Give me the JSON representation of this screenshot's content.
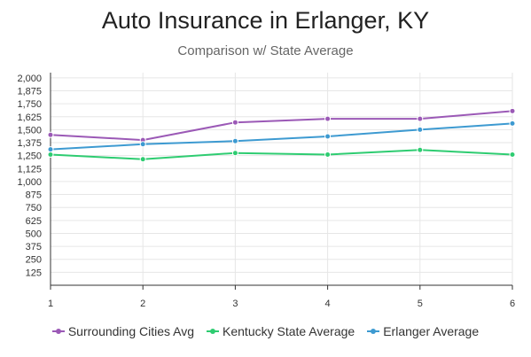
{
  "chart_data": {
    "type": "line",
    "title": "Auto Insurance in Erlanger, KY",
    "subtitle": "Comparison w/ State Average",
    "x": [
      1,
      2,
      3,
      4,
      5,
      6
    ],
    "y_ticks": [
      125,
      250,
      375,
      500,
      625,
      750,
      875,
      1000,
      1125,
      1250,
      1375,
      1500,
      1625,
      1750,
      1875,
      2000
    ],
    "y_tick_labels": [
      "125",
      "250",
      "375",
      "500",
      "625",
      "750",
      "875",
      "1,000",
      "1,125",
      "1,250",
      "1,375",
      "1,500",
      "1,625",
      "1,750",
      "1,875",
      "2,000"
    ],
    "ylim": [
      0,
      2050
    ],
    "grid": true,
    "legend_position": "bottom",
    "series": [
      {
        "name": "Surrounding Cities Avg",
        "color": "#9b59b6",
        "values": [
          1450,
          1400,
          1570,
          1605,
          1605,
          1680
        ]
      },
      {
        "name": "Kentucky State Average",
        "color": "#2ecc71",
        "values": [
          1260,
          1215,
          1275,
          1260,
          1305,
          1260
        ]
      },
      {
        "name": "Erlanger Average",
        "color": "#3d9ad1",
        "values": [
          1310,
          1360,
          1390,
          1435,
          1500,
          1560
        ]
      }
    ]
  }
}
